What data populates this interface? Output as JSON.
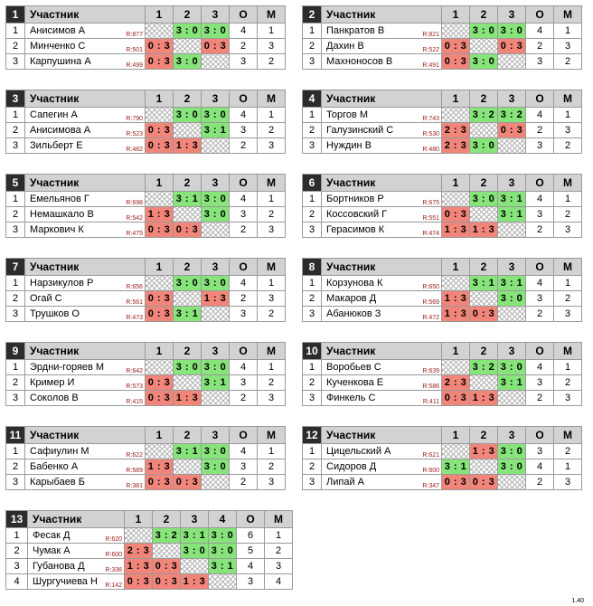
{
  "headers": {
    "participant": "Участник",
    "points": "О",
    "place": "М"
  },
  "version": "1.40",
  "groups": [
    {
      "num": "1",
      "cols": [
        "1",
        "2",
        "3"
      ],
      "rows": [
        {
          "idx": "1",
          "name": "Анисимов А",
          "rating": "R:877",
          "scores": [
            "",
            "3 : 0",
            "3 : 0"
          ],
          "points": "4",
          "place": "1"
        },
        {
          "idx": "2",
          "name": "Минченко С",
          "rating": "R:501",
          "scores": [
            "0 : 3",
            "",
            "0 : 3"
          ],
          "points": "2",
          "place": "3"
        },
        {
          "idx": "3",
          "name": "Карпушина А",
          "rating": "R:499",
          "scores": [
            "0 : 3",
            "3 : 0",
            ""
          ],
          "points": "3",
          "place": "2"
        }
      ]
    },
    {
      "num": "2",
      "cols": [
        "1",
        "2",
        "3"
      ],
      "rows": [
        {
          "idx": "1",
          "name": "Панкратов В",
          "rating": "R:821",
          "scores": [
            "",
            "3 : 0",
            "3 : 0"
          ],
          "points": "4",
          "place": "1"
        },
        {
          "idx": "2",
          "name": "Дахин В",
          "rating": "R:522",
          "scores": [
            "0 : 3",
            "",
            "0 : 3"
          ],
          "points": "2",
          "place": "3"
        },
        {
          "idx": "3",
          "name": "Махноносов В",
          "rating": "R:491",
          "scores": [
            "0 : 3",
            "3 : 0",
            ""
          ],
          "points": "3",
          "place": "2"
        }
      ]
    },
    {
      "num": "3",
      "cols": [
        "1",
        "2",
        "3"
      ],
      "rows": [
        {
          "idx": "1",
          "name": "Сапегин А",
          "rating": "R:790",
          "scores": [
            "",
            "3 : 0",
            "3 : 0"
          ],
          "points": "4",
          "place": "1"
        },
        {
          "idx": "2",
          "name": "Анисимова А",
          "rating": "R:523",
          "scores": [
            "0 : 3",
            "",
            "3 : 1"
          ],
          "points": "3",
          "place": "2"
        },
        {
          "idx": "3",
          "name": "Зильберт Е",
          "rating": "R:482",
          "scores": [
            "0 : 3",
            "1 : 3",
            ""
          ],
          "points": "2",
          "place": "3"
        }
      ]
    },
    {
      "num": "4",
      "cols": [
        "1",
        "2",
        "3"
      ],
      "rows": [
        {
          "idx": "1",
          "name": "Торгов М",
          "rating": "R:743",
          "scores": [
            "",
            "3 : 2",
            "3 : 2"
          ],
          "points": "4",
          "place": "1"
        },
        {
          "idx": "2",
          "name": "Галузинский С",
          "rating": "R:530",
          "scores": [
            "2 : 3",
            "",
            "0 : 3"
          ],
          "points": "2",
          "place": "3"
        },
        {
          "idx": "3",
          "name": "Нуждин В",
          "rating": "R:480",
          "scores": [
            "2 : 3",
            "3 : 0",
            ""
          ],
          "points": "3",
          "place": "2"
        }
      ]
    },
    {
      "num": "5",
      "cols": [
        "1",
        "2",
        "3"
      ],
      "rows": [
        {
          "idx": "1",
          "name": "Емельянов Г",
          "rating": "R:698",
          "scores": [
            "",
            "3 : 1",
            "3 : 0"
          ],
          "points": "4",
          "place": "1"
        },
        {
          "idx": "2",
          "name": "Немашкало В",
          "rating": "R:542",
          "scores": [
            "1 : 3",
            "",
            "3 : 0"
          ],
          "points": "3",
          "place": "2"
        },
        {
          "idx": "3",
          "name": "Маркович К",
          "rating": "R:475",
          "scores": [
            "0 : 3",
            "0 : 3",
            ""
          ],
          "points": "2",
          "place": "3"
        }
      ]
    },
    {
      "num": "6",
      "cols": [
        "1",
        "2",
        "3"
      ],
      "rows": [
        {
          "idx": "1",
          "name": "Бортников Р",
          "rating": "R:675",
          "scores": [
            "",
            "3 : 0",
            "3 : 1"
          ],
          "points": "4",
          "place": "1"
        },
        {
          "idx": "2",
          "name": "Коссовский Г",
          "rating": "R:551",
          "scores": [
            "0 : 3",
            "",
            "3 : 1"
          ],
          "points": "3",
          "place": "2"
        },
        {
          "idx": "3",
          "name": "Герасимов К",
          "rating": "R:474",
          "scores": [
            "1 : 3",
            "1 : 3",
            ""
          ],
          "points": "2",
          "place": "3"
        }
      ]
    },
    {
      "num": "7",
      "cols": [
        "1",
        "2",
        "3"
      ],
      "rows": [
        {
          "idx": "1",
          "name": "Нарзикулов Р",
          "rating": "R:656",
          "scores": [
            "",
            "3 : 0",
            "3 : 0"
          ],
          "points": "4",
          "place": "1"
        },
        {
          "idx": "2",
          "name": "Огай С",
          "rating": "R:561",
          "scores": [
            "0 : 3",
            "",
            "1 : 3"
          ],
          "points": "2",
          "place": "3"
        },
        {
          "idx": "3",
          "name": "Трушков О",
          "rating": "R:473",
          "scores": [
            "0 : 3",
            "3 : 1",
            ""
          ],
          "points": "3",
          "place": "2"
        }
      ]
    },
    {
      "num": "8",
      "cols": [
        "1",
        "2",
        "3"
      ],
      "rows": [
        {
          "idx": "1",
          "name": "Корзунова К",
          "rating": "R:650",
          "scores": [
            "",
            "3 : 1",
            "3 : 1"
          ],
          "points": "4",
          "place": "1"
        },
        {
          "idx": "2",
          "name": "Макаров Д",
          "rating": "R:569",
          "scores": [
            "1 : 3",
            "",
            "3 : 0"
          ],
          "points": "3",
          "place": "2"
        },
        {
          "idx": "3",
          "name": "Абанюков З",
          "rating": "R:472",
          "scores": [
            "1 : 3",
            "0 : 3",
            ""
          ],
          "points": "2",
          "place": "3"
        }
      ]
    },
    {
      "num": "9",
      "cols": [
        "1",
        "2",
        "3"
      ],
      "rows": [
        {
          "idx": "1",
          "name": "Эрдни-горяев М",
          "rating": "R:642",
          "scores": [
            "",
            "3 : 0",
            "3 : 0"
          ],
          "points": "4",
          "place": "1"
        },
        {
          "idx": "2",
          "name": "Кример И",
          "rating": "R:573",
          "scores": [
            "0 : 3",
            "",
            "3 : 1"
          ],
          "points": "3",
          "place": "2"
        },
        {
          "idx": "3",
          "name": "Соколов В",
          "rating": "R:415",
          "scores": [
            "0 : 3",
            "1 : 3",
            ""
          ],
          "points": "2",
          "place": "3"
        }
      ]
    },
    {
      "num": "10",
      "cols": [
        "1",
        "2",
        "3"
      ],
      "rows": [
        {
          "idx": "1",
          "name": "Воробьев С",
          "rating": "R:639",
          "scores": [
            "",
            "3 : 2",
            "3 : 0"
          ],
          "points": "4",
          "place": "1"
        },
        {
          "idx": "2",
          "name": "Кученкова Е",
          "rating": "R:586",
          "scores": [
            "2 : 3",
            "",
            "3 : 1"
          ],
          "points": "3",
          "place": "2"
        },
        {
          "idx": "3",
          "name": "Финкель С",
          "rating": "R:411",
          "scores": [
            "0 : 3",
            "1 : 3",
            ""
          ],
          "points": "2",
          "place": "3"
        }
      ]
    },
    {
      "num": "11",
      "cols": [
        "1",
        "2",
        "3"
      ],
      "rows": [
        {
          "idx": "1",
          "name": "Сафиулин М",
          "rating": "R:622",
          "scores": [
            "",
            "3 : 1",
            "3 : 0"
          ],
          "points": "4",
          "place": "1"
        },
        {
          "idx": "2",
          "name": "Бабенко А",
          "rating": "R:589",
          "scores": [
            "1 : 3",
            "",
            "3 : 0"
          ],
          "points": "3",
          "place": "2"
        },
        {
          "idx": "3",
          "name": "Карыбаев Б",
          "rating": "R:381",
          "scores": [
            "0 : 3",
            "0 : 3",
            ""
          ],
          "points": "2",
          "place": "3"
        }
      ]
    },
    {
      "num": "12",
      "cols": [
        "1",
        "2",
        "3"
      ],
      "rows": [
        {
          "idx": "1",
          "name": "Цицельский А",
          "rating": "R:621",
          "scores": [
            "",
            "1 : 3",
            "3 : 0"
          ],
          "points": "3",
          "place": "2"
        },
        {
          "idx": "2",
          "name": "Сидоров Д",
          "rating": "R:600",
          "scores": [
            "3 : 1",
            "",
            "3 : 0"
          ],
          "points": "4",
          "place": "1"
        },
        {
          "idx": "3",
          "name": "Липай А",
          "rating": "R:347",
          "scores": [
            "0 : 3",
            "0 : 3",
            ""
          ],
          "points": "2",
          "place": "3"
        }
      ]
    },
    {
      "num": "13",
      "cols": [
        "1",
        "2",
        "3",
        "4"
      ],
      "rows": [
        {
          "idx": "1",
          "name": "Фесак Д",
          "rating": "R:620",
          "scores": [
            "",
            "3 : 2",
            "3 : 1",
            "3 : 0"
          ],
          "points": "6",
          "place": "1"
        },
        {
          "idx": "2",
          "name": "Чумак А",
          "rating": "R:600",
          "scores": [
            "2 : 3",
            "",
            "3 : 0",
            "3 : 0"
          ],
          "points": "5",
          "place": "2"
        },
        {
          "idx": "3",
          "name": "Губанова Д",
          "rating": "R:336",
          "scores": [
            "1 : 3",
            "0 : 3",
            "",
            "3 : 1"
          ],
          "points": "4",
          "place": "3"
        },
        {
          "idx": "4",
          "name": "Шургучиева Н",
          "rating": "R:142",
          "scores": [
            "0 : 3",
            "0 : 3",
            "1 : 3",
            ""
          ],
          "points": "3",
          "place": "4"
        }
      ]
    }
  ]
}
